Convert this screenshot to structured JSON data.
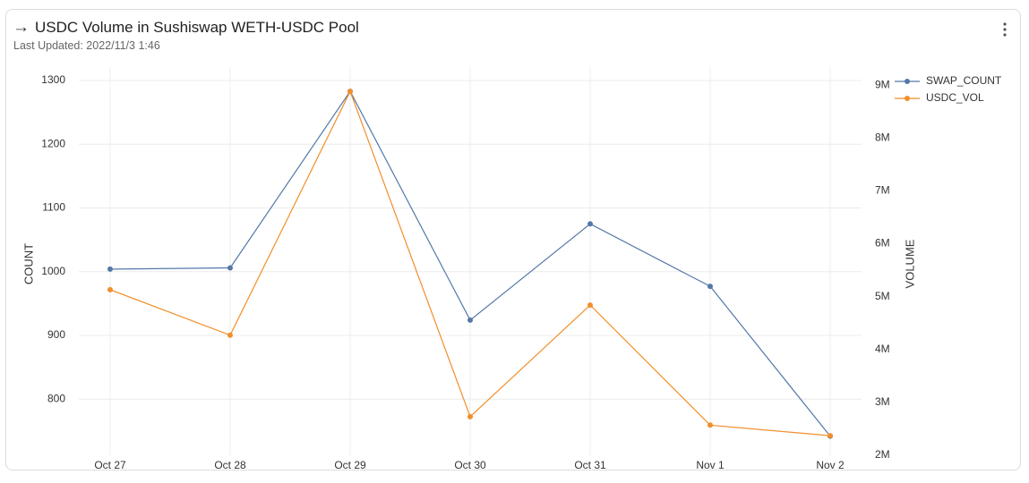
{
  "chart_data": {
    "type": "line",
    "title": "USDC Volume in Sushiswap WETH-USDC Pool",
    "subtitle": "Last Updated: 2022/11/3 1:46",
    "ylabel": "COUNT",
    "y2label": "VOLUME",
    "categories": [
      "Oct 27",
      "Oct 28",
      "Oct 29",
      "Oct 30",
      "Oct 31",
      "Nov 1",
      "Nov 2"
    ],
    "series": [
      {
        "name": "SWAP_COUNT",
        "color": "#5478a8",
        "values": [
          1004,
          1006,
          1283,
          924,
          1075,
          977,
          742
        ]
      },
      {
        "name": "USDC_VOL",
        "color": "#f28e2b",
        "axis": "y2",
        "values": [
          5130000,
          4270000,
          8880000,
          2730000,
          4840000,
          2570000,
          2370000
        ]
      }
    ],
    "ylim": [
      712,
      1321
    ],
    "yticks": [
      800,
      900,
      1000,
      1100,
      1200,
      1300
    ],
    "y2lim": [
      2000000,
      9340000
    ],
    "y2ticks": [
      {
        "value": 2000000,
        "label": "2M"
      },
      {
        "value": 3000000,
        "label": "3M"
      },
      {
        "value": 4000000,
        "label": "4M"
      },
      {
        "value": 5000000,
        "label": "5M"
      },
      {
        "value": 6000000,
        "label": "6M"
      },
      {
        "value": 7000000,
        "label": "7M"
      },
      {
        "value": 8000000,
        "label": "8M"
      },
      {
        "value": 9000000,
        "label": "9M"
      }
    ],
    "y2color": "#9b59b6",
    "grid": true
  }
}
